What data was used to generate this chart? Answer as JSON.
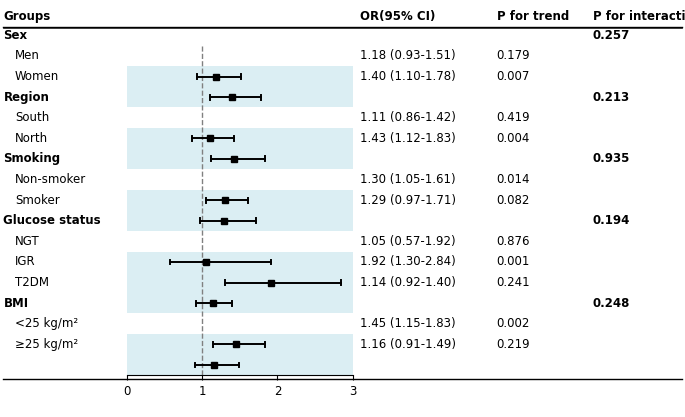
{
  "groups": [
    {
      "label": "Sex",
      "header": true,
      "p_interaction": "0.257",
      "row": 0
    },
    {
      "label": "Men",
      "header": false,
      "or": 1.18,
      "ci_low": 0.93,
      "ci_high": 1.51,
      "p_trend": "0.179",
      "row": 1,
      "shaded": true
    },
    {
      "label": "Women",
      "header": false,
      "or": 1.4,
      "ci_low": 1.1,
      "ci_high": 1.78,
      "p_trend": "0.007",
      "row": 2,
      "shaded": true
    },
    {
      "label": "Region",
      "header": true,
      "p_interaction": "0.213",
      "row": 3
    },
    {
      "label": "South",
      "header": false,
      "or": 1.11,
      "ci_low": 0.86,
      "ci_high": 1.42,
      "p_trend": "0.419",
      "row": 4,
      "shaded": true
    },
    {
      "label": "North",
      "header": false,
      "or": 1.43,
      "ci_low": 1.12,
      "ci_high": 1.83,
      "p_trend": "0.004",
      "row": 5,
      "shaded": true
    },
    {
      "label": "Smoking",
      "header": true,
      "p_interaction": "0.935",
      "row": 6
    },
    {
      "label": "Non-smoker",
      "header": false,
      "or": 1.3,
      "ci_low": 1.05,
      "ci_high": 1.61,
      "p_trend": "0.014",
      "row": 7,
      "shaded": true
    },
    {
      "label": "Smoker",
      "header": false,
      "or": 1.29,
      "ci_low": 0.97,
      "ci_high": 1.71,
      "p_trend": "0.082",
      "row": 8,
      "shaded": true
    },
    {
      "label": "Glucose status",
      "header": true,
      "p_interaction": "0.194",
      "row": 9
    },
    {
      "label": "NGT",
      "header": false,
      "or": 1.05,
      "ci_low": 0.57,
      "ci_high": 1.92,
      "p_trend": "0.876",
      "row": 10,
      "shaded": true
    },
    {
      "label": "IGR",
      "header": false,
      "or": 1.92,
      "ci_low": 1.3,
      "ci_high": 2.84,
      "p_trend": "0.001",
      "row": 11,
      "shaded": true
    },
    {
      "label": "T2DM",
      "header": false,
      "or": 1.14,
      "ci_low": 0.92,
      "ci_high": 1.4,
      "p_trend": "0.241",
      "row": 12,
      "shaded": true
    },
    {
      "label": "BMI",
      "header": true,
      "p_interaction": "0.248",
      "row": 13
    },
    {
      "label": "<25 kg/m²",
      "header": false,
      "or": 1.45,
      "ci_low": 1.15,
      "ci_high": 1.83,
      "p_trend": "0.002",
      "row": 14,
      "shaded": true
    },
    {
      "label": "≥25 kg/m²",
      "header": false,
      "or": 1.16,
      "ci_low": 0.91,
      "ci_high": 1.49,
      "p_trend": "0.219",
      "row": 15,
      "shaded": true
    }
  ],
  "total_rows": 16,
  "xmin": 0,
  "xmax": 3,
  "xticks": [
    0,
    1,
    2,
    3
  ],
  "ref_line": 1.0,
  "shaded_color": "#dbeef3",
  "marker_color": "#000000",
  "marker_size": 4.5,
  "line_width": 1.4,
  "cap_size": 0.12,
  "col_headers": [
    "Groups",
    "OR(95% CI)",
    "P for trend",
    "P for interaction"
  ],
  "font_size": 8.5,
  "header_font_size": 8.5
}
